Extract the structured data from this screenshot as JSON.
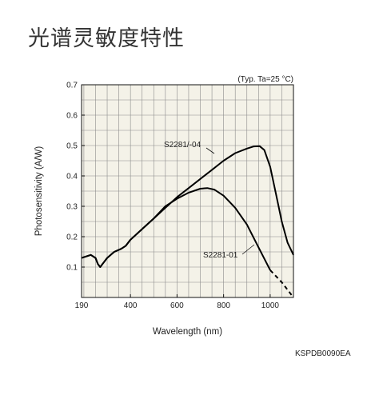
{
  "page": {
    "title": "光谱灵敏度特性",
    "doc_code": "KSPDB0090EA"
  },
  "chart_data": {
    "type": "line",
    "condition": "(Typ. Ta=25 °C)",
    "xlabel": "Wavelength (nm)",
    "ylabel": "Photosensitivity (A/W)",
    "xlim": [
      190,
      1100
    ],
    "ylim": [
      0,
      0.7
    ],
    "xticks": [
      190,
      400,
      600,
      800,
      1000
    ],
    "yticks": [
      0.1,
      0.2,
      0.3,
      0.4,
      0.5,
      0.6,
      0.7
    ],
    "grid": true,
    "background": "#f4f2e8",
    "series": [
      {
        "name": "S2281/-04",
        "color": "#000000",
        "points": [
          [
            190,
            0.13
          ],
          [
            230,
            0.14
          ],
          [
            250,
            0.13
          ],
          [
            260,
            0.11
          ],
          [
            270,
            0.1
          ],
          [
            280,
            0.11
          ],
          [
            300,
            0.13
          ],
          [
            330,
            0.15
          ],
          [
            360,
            0.16
          ],
          [
            380,
            0.17
          ],
          [
            400,
            0.19
          ],
          [
            450,
            0.225
          ],
          [
            500,
            0.26
          ],
          [
            550,
            0.295
          ],
          [
            600,
            0.33
          ],
          [
            650,
            0.36
          ],
          [
            700,
            0.39
          ],
          [
            750,
            0.42
          ],
          [
            800,
            0.45
          ],
          [
            850,
            0.475
          ],
          [
            900,
            0.49
          ],
          [
            930,
            0.497
          ],
          [
            955,
            0.498
          ],
          [
            975,
            0.485
          ],
          [
            1000,
            0.43
          ],
          [
            1025,
            0.34
          ],
          [
            1050,
            0.25
          ],
          [
            1075,
            0.18
          ],
          [
            1100,
            0.14
          ]
        ]
      },
      {
        "name": "S2281-01",
        "color": "#000000",
        "points": [
          [
            190,
            0.13
          ],
          [
            230,
            0.14
          ],
          [
            250,
            0.13
          ],
          [
            260,
            0.11
          ],
          [
            270,
            0.1
          ],
          [
            280,
            0.11
          ],
          [
            300,
            0.13
          ],
          [
            330,
            0.15
          ],
          [
            360,
            0.16
          ],
          [
            380,
            0.17
          ],
          [
            400,
            0.19
          ],
          [
            450,
            0.225
          ],
          [
            500,
            0.26
          ],
          [
            550,
            0.3
          ],
          [
            600,
            0.325
          ],
          [
            650,
            0.345
          ],
          [
            700,
            0.358
          ],
          [
            730,
            0.36
          ],
          [
            760,
            0.355
          ],
          [
            800,
            0.335
          ],
          [
            850,
            0.295
          ],
          [
            900,
            0.24
          ],
          [
            950,
            0.165
          ],
          [
            1000,
            0.09
          ]
        ],
        "dashed_points": [
          [
            1000,
            0.09
          ],
          [
            1050,
            0.05
          ],
          [
            1100,
            0.0
          ]
        ]
      }
    ]
  }
}
